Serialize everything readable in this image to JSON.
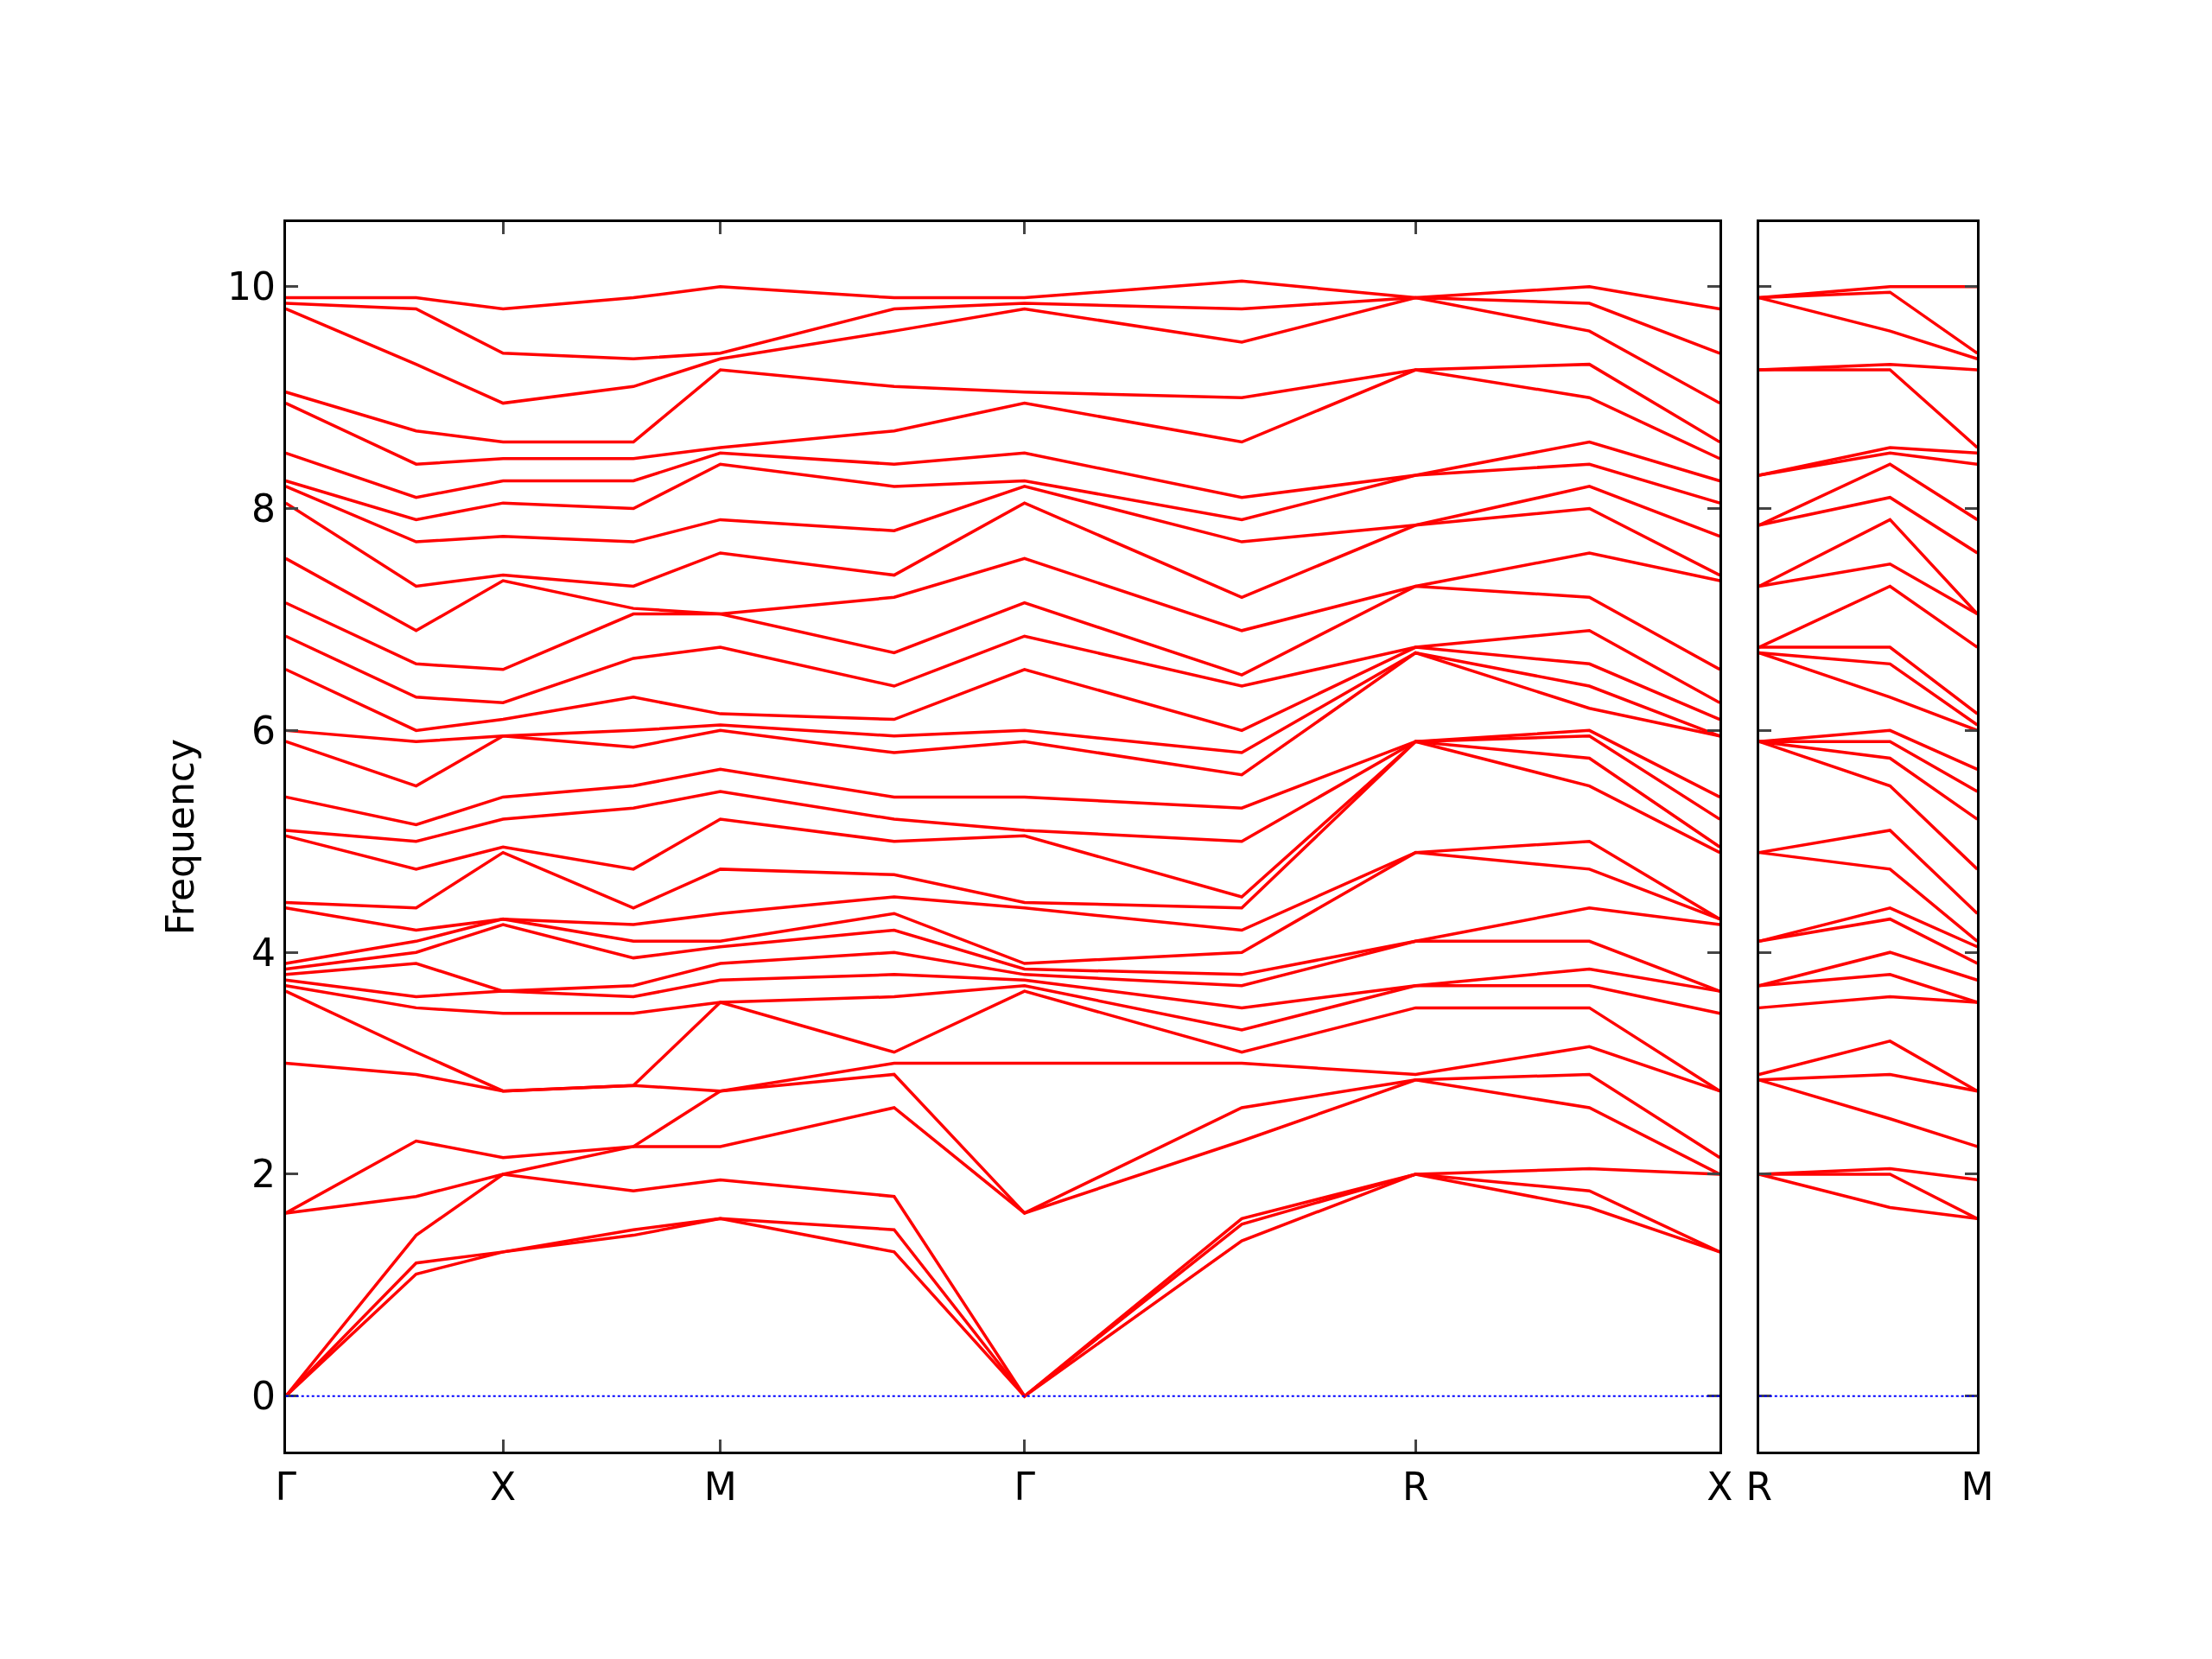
{
  "chart_data": [
    {
      "type": "line",
      "ylabel": "Frequency",
      "categories": [
        "Γ",
        null,
        null,
        null,
        null,
        "X",
        null,
        null,
        null,
        null,
        "M",
        null,
        null,
        null,
        null,
        null,
        null,
        "Γ",
        null,
        null,
        null,
        null,
        null,
        null,
        null,
        null,
        "R",
        null,
        null,
        null,
        null,
        null,
        null,
        "X"
      ],
      "ylim": [
        -0.5,
        10.58
      ],
      "yticks": [
        0,
        2,
        4,
        6,
        8,
        10
      ],
      "marker": "none",
      "line_style": "solid",
      "ref_lines": [
        {
          "axis": "y",
          "value": 0,
          "color": "#0000ff",
          "line_style": "dotted"
        }
      ],
      "series": [
        {
          "color": "#ff0000",
          "values": [
            0,
            null,
            null,
            1.1,
            null,
            1.3,
            null,
            null,
            1.45,
            null,
            1.6,
            null,
            null,
            null,
            1.3,
            null,
            null,
            0,
            null,
            null,
            null,
            null,
            1.4,
            null,
            null,
            null,
            2.0,
            null,
            null,
            null,
            1.7,
            null,
            null,
            1.3
          ]
        },
        {
          "color": "#ff0000",
          "values": [
            0,
            null,
            null,
            1.2,
            null,
            1.3,
            null,
            null,
            1.5,
            null,
            1.6,
            null,
            null,
            null,
            1.5,
            null,
            null,
            0,
            null,
            null,
            null,
            null,
            1.55,
            null,
            null,
            null,
            2.0,
            null,
            null,
            null,
            1.85,
            null,
            null,
            1.3
          ]
        },
        {
          "color": "#ff0000",
          "values": [
            0,
            null,
            null,
            1.45,
            null,
            2.0,
            null,
            null,
            1.85,
            null,
            1.95,
            null,
            null,
            null,
            1.8,
            null,
            null,
            0,
            null,
            null,
            null,
            null,
            1.6,
            null,
            null,
            null,
            2.0,
            null,
            null,
            null,
            2.05,
            null,
            null,
            2.0
          ]
        },
        {
          "color": "#ff0000",
          "values": [
            1.65,
            null,
            null,
            1.8,
            null,
            2.0,
            null,
            null,
            2.25,
            null,
            2.25,
            null,
            null,
            null,
            2.6,
            null,
            null,
            1.65,
            null,
            null,
            null,
            null,
            2.3,
            null,
            null,
            null,
            2.85,
            null,
            null,
            null,
            2.6,
            null,
            null,
            2.0
          ]
        },
        {
          "color": "#ff0000",
          "values": [
            1.65,
            null,
            null,
            2.3,
            null,
            2.15,
            null,
            null,
            2.25,
            null,
            2.75,
            null,
            null,
            null,
            2.9,
            null,
            null,
            1.65,
            null,
            null,
            null,
            null,
            2.6,
            null,
            null,
            null,
            2.85,
            null,
            null,
            null,
            2.9,
            null,
            null,
            2.15
          ]
        },
        {
          "color": "#ff0000",
          "values": [
            3.0,
            null,
            null,
            2.9,
            null,
            2.75,
            null,
            null,
            2.8,
            null,
            2.75,
            null,
            null,
            null,
            3.0,
            null,
            null,
            3.0,
            null,
            null,
            null,
            null,
            3.0,
            null,
            null,
            null,
            2.9,
            null,
            null,
            null,
            3.15,
            null,
            null,
            2.75
          ]
        },
        {
          "color": "#ff0000",
          "values": [
            3.65,
            null,
            null,
            3.1,
            null,
            2.75,
            null,
            null,
            2.8,
            null,
            3.55,
            null,
            null,
            null,
            3.1,
            null,
            null,
            3.65,
            null,
            null,
            null,
            null,
            3.1,
            null,
            null,
            null,
            3.5,
            null,
            null,
            null,
            3.5,
            null,
            null,
            2.75
          ]
        },
        {
          "color": "#ff0000",
          "values": [
            3.7,
            null,
            null,
            3.5,
            null,
            3.45,
            null,
            null,
            3.45,
            null,
            3.55,
            null,
            null,
            null,
            3.6,
            null,
            null,
            3.7,
            null,
            null,
            null,
            null,
            3.3,
            null,
            null,
            null,
            3.7,
            null,
            null,
            null,
            3.7,
            null,
            null,
            3.45
          ]
        },
        {
          "color": "#ff0000",
          "values": [
            3.75,
            null,
            null,
            3.6,
            null,
            3.65,
            null,
            null,
            3.6,
            null,
            3.75,
            null,
            null,
            null,
            3.8,
            null,
            null,
            3.75,
            null,
            null,
            null,
            null,
            3.5,
            null,
            null,
            null,
            3.7,
            null,
            null,
            null,
            3.85,
            null,
            null,
            3.65
          ]
        },
        {
          "color": "#ff0000",
          "values": [
            3.8,
            null,
            null,
            3.9,
            null,
            3.65,
            null,
            null,
            3.7,
            null,
            3.9,
            null,
            null,
            null,
            4.0,
            null,
            null,
            3.8,
            null,
            null,
            null,
            null,
            3.7,
            null,
            null,
            null,
            4.1,
            null,
            null,
            null,
            4.1,
            null,
            null,
            3.65
          ]
        },
        {
          "color": "#ff0000",
          "values": [
            3.85,
            null,
            null,
            4.0,
            null,
            4.25,
            null,
            null,
            3.95,
            null,
            4.05,
            null,
            null,
            null,
            4.2,
            null,
            null,
            3.85,
            null,
            null,
            null,
            null,
            3.8,
            null,
            null,
            null,
            4.1,
            null,
            null,
            null,
            4.4,
            null,
            null,
            4.25
          ]
        },
        {
          "color": "#ff0000",
          "values": [
            3.9,
            null,
            null,
            4.1,
            null,
            4.3,
            null,
            null,
            4.1,
            null,
            4.1,
            null,
            null,
            null,
            4.35,
            null,
            null,
            3.9,
            null,
            null,
            null,
            null,
            4.0,
            null,
            null,
            null,
            4.9,
            null,
            null,
            null,
            4.75,
            null,
            null,
            4.3
          ]
        },
        {
          "color": "#ff0000",
          "values": [
            4.4,
            null,
            null,
            4.2,
            null,
            4.3,
            null,
            null,
            4.25,
            null,
            4.35,
            null,
            null,
            null,
            4.5,
            null,
            null,
            4.4,
            null,
            null,
            null,
            null,
            4.2,
            null,
            null,
            null,
            4.9,
            null,
            null,
            null,
            5.0,
            null,
            null,
            4.3
          ]
        },
        {
          "color": "#ff0000",
          "values": [
            4.45,
            null,
            null,
            4.4,
            null,
            4.9,
            null,
            null,
            4.4,
            null,
            4.75,
            null,
            null,
            null,
            4.7,
            null,
            null,
            4.45,
            null,
            null,
            null,
            null,
            4.4,
            null,
            null,
            null,
            5.9,
            null,
            null,
            null,
            5.5,
            null,
            null,
            4.9
          ]
        },
        {
          "color": "#ff0000",
          "values": [
            5.05,
            null,
            null,
            4.75,
            null,
            4.95,
            null,
            null,
            4.75,
            null,
            5.2,
            null,
            null,
            null,
            5.0,
            null,
            null,
            5.05,
            null,
            null,
            null,
            null,
            4.5,
            null,
            null,
            null,
            5.9,
            null,
            null,
            null,
            5.75,
            null,
            null,
            4.95
          ]
        },
        {
          "color": "#ff0000",
          "values": [
            5.1,
            null,
            null,
            5.0,
            null,
            5.2,
            null,
            null,
            5.3,
            null,
            5.45,
            null,
            null,
            null,
            5.2,
            null,
            null,
            5.1,
            null,
            null,
            null,
            null,
            5.0,
            null,
            null,
            null,
            5.9,
            null,
            null,
            null,
            5.95,
            null,
            null,
            5.2
          ]
        },
        {
          "color": "#ff0000",
          "values": [
            5.4,
            null,
            null,
            5.15,
            null,
            5.4,
            null,
            null,
            5.5,
            null,
            5.65,
            null,
            null,
            null,
            5.4,
            null,
            null,
            5.4,
            null,
            null,
            null,
            null,
            5.3,
            null,
            null,
            null,
            5.9,
            null,
            null,
            null,
            6.0,
            null,
            null,
            5.4
          ]
        },
        {
          "color": "#ff0000",
          "values": [
            5.9,
            null,
            null,
            5.5,
            null,
            5.95,
            null,
            null,
            5.85,
            null,
            6.0,
            null,
            null,
            null,
            5.8,
            null,
            null,
            5.9,
            null,
            null,
            null,
            null,
            5.6,
            null,
            null,
            null,
            6.7,
            null,
            null,
            null,
            6.2,
            null,
            null,
            5.95
          ]
        },
        {
          "color": "#ff0000",
          "values": [
            6.0,
            null,
            null,
            5.9,
            null,
            5.95,
            null,
            null,
            6.0,
            null,
            6.05,
            null,
            null,
            null,
            5.95,
            null,
            null,
            6.0,
            null,
            null,
            null,
            null,
            5.8,
            null,
            null,
            null,
            6.7,
            null,
            null,
            null,
            6.4,
            null,
            null,
            5.95
          ]
        },
        {
          "color": "#ff0000",
          "values": [
            6.55,
            null,
            null,
            6.0,
            null,
            6.1,
            null,
            null,
            6.3,
            null,
            6.15,
            null,
            null,
            null,
            6.1,
            null,
            null,
            6.55,
            null,
            null,
            null,
            null,
            6.0,
            null,
            null,
            null,
            6.75,
            null,
            null,
            null,
            6.6,
            null,
            null,
            6.1
          ]
        },
        {
          "color": "#ff0000",
          "values": [
            6.85,
            null,
            null,
            6.3,
            null,
            6.25,
            null,
            null,
            6.65,
            null,
            6.75,
            null,
            null,
            null,
            6.4,
            null,
            null,
            6.85,
            null,
            null,
            null,
            null,
            6.4,
            null,
            null,
            null,
            6.75,
            null,
            null,
            null,
            6.9,
            null,
            null,
            6.25
          ]
        },
        {
          "color": "#ff0000",
          "values": [
            7.15,
            null,
            null,
            6.6,
            null,
            6.55,
            null,
            null,
            7.05,
            null,
            7.05,
            null,
            null,
            null,
            6.7,
            null,
            null,
            7.15,
            null,
            null,
            null,
            null,
            6.5,
            null,
            null,
            null,
            7.3,
            null,
            null,
            null,
            7.2,
            null,
            null,
            6.55
          ]
        },
        {
          "color": "#ff0000",
          "values": [
            7.55,
            null,
            null,
            6.9,
            null,
            7.35,
            null,
            null,
            7.1,
            null,
            7.05,
            null,
            null,
            null,
            7.2,
            null,
            null,
            7.55,
            null,
            null,
            null,
            null,
            6.9,
            null,
            null,
            null,
            7.3,
            null,
            null,
            null,
            7.6,
            null,
            null,
            7.35
          ]
        },
        {
          "color": "#ff0000",
          "values": [
            8.05,
            null,
            null,
            7.3,
            null,
            7.4,
            null,
            null,
            7.3,
            null,
            7.6,
            null,
            null,
            null,
            7.4,
            null,
            null,
            8.05,
            null,
            null,
            null,
            null,
            7.2,
            null,
            null,
            null,
            7.85,
            null,
            null,
            null,
            8.0,
            null,
            null,
            7.4
          ]
        },
        {
          "color": "#ff0000",
          "values": [
            8.2,
            null,
            null,
            7.7,
            null,
            7.75,
            null,
            null,
            7.7,
            null,
            7.9,
            null,
            null,
            null,
            7.8,
            null,
            null,
            8.2,
            null,
            null,
            null,
            null,
            7.7,
            null,
            null,
            null,
            7.85,
            null,
            null,
            null,
            8.2,
            null,
            null,
            7.75
          ]
        },
        {
          "color": "#ff0000",
          "values": [
            8.25,
            null,
            null,
            7.9,
            null,
            8.05,
            null,
            null,
            8.0,
            null,
            8.4,
            null,
            null,
            null,
            8.2,
            null,
            null,
            8.25,
            null,
            null,
            null,
            null,
            7.9,
            null,
            null,
            null,
            8.3,
            null,
            null,
            null,
            8.4,
            null,
            null,
            8.05
          ]
        },
        {
          "color": "#ff0000",
          "values": [
            8.5,
            null,
            null,
            8.1,
            null,
            8.25,
            null,
            null,
            8.25,
            null,
            8.5,
            null,
            null,
            null,
            8.4,
            null,
            null,
            8.5,
            null,
            null,
            null,
            null,
            8.1,
            null,
            null,
            null,
            8.3,
            null,
            null,
            null,
            8.6,
            null,
            null,
            8.25
          ]
        },
        {
          "color": "#ff0000",
          "values": [
            8.95,
            null,
            null,
            8.4,
            null,
            8.45,
            null,
            null,
            8.45,
            null,
            8.55,
            null,
            null,
            null,
            8.7,
            null,
            null,
            8.95,
            null,
            null,
            null,
            null,
            8.6,
            null,
            null,
            null,
            9.25,
            null,
            null,
            null,
            9.0,
            null,
            null,
            8.45
          ]
        },
        {
          "color": "#ff0000",
          "values": [
            9.05,
            null,
            null,
            8.7,
            null,
            8.6,
            null,
            null,
            8.6,
            null,
            9.25,
            null,
            null,
            null,
            9.1,
            null,
            null,
            9.05,
            null,
            null,
            null,
            null,
            9.0,
            null,
            null,
            null,
            9.25,
            null,
            null,
            null,
            9.3,
            null,
            null,
            8.6
          ]
        },
        {
          "color": "#ff0000",
          "values": [
            9.8,
            null,
            null,
            9.3,
            null,
            8.95,
            null,
            null,
            9.1,
            null,
            9.35,
            null,
            null,
            null,
            9.6,
            null,
            null,
            9.8,
            null,
            null,
            null,
            null,
            9.5,
            null,
            null,
            null,
            9.9,
            null,
            null,
            null,
            9.6,
            null,
            null,
            8.95
          ]
        },
        {
          "color": "#ff0000",
          "values": [
            9.85,
            null,
            null,
            9.8,
            null,
            9.4,
            null,
            null,
            9.35,
            null,
            9.4,
            null,
            null,
            null,
            9.8,
            null,
            null,
            9.85,
            null,
            null,
            null,
            null,
            9.8,
            null,
            null,
            null,
            9.9,
            null,
            null,
            null,
            9.85,
            null,
            null,
            9.4
          ]
        },
        {
          "color": "#ff0000",
          "values": [
            9.9,
            null,
            null,
            9.9,
            null,
            9.8,
            null,
            null,
            9.9,
            null,
            10.0,
            null,
            null,
            null,
            9.9,
            null,
            null,
            9.9,
            null,
            null,
            null,
            null,
            10.05,
            null,
            null,
            null,
            9.9,
            null,
            null,
            null,
            10.0,
            null,
            null,
            9.8
          ]
        }
      ]
    },
    {
      "type": "line",
      "categories": [
        "R",
        null,
        null,
        null,
        null,
        "M"
      ],
      "ylim": [
        -0.5,
        10.58
      ],
      "yticks": [
        0,
        2,
        4,
        6,
        8,
        10
      ],
      "tick_labels": "x",
      "marker": "none",
      "line_style": "solid",
      "ref_lines": [
        {
          "axis": "y",
          "value": 0,
          "color": "#0000ff",
          "line_style": "dotted"
        }
      ],
      "series": [
        {
          "color": "#ff0000",
          "values": [
            2.0,
            null,
            null,
            1.7,
            null,
            1.6
          ]
        },
        {
          "color": "#ff0000",
          "values": [
            2.0,
            null,
            null,
            2.0,
            null,
            1.6
          ]
        },
        {
          "color": "#ff0000",
          "values": [
            2.0,
            null,
            null,
            2.05,
            null,
            1.95
          ]
        },
        {
          "color": "#ff0000",
          "values": [
            2.85,
            null,
            null,
            2.5,
            null,
            2.25
          ]
        },
        {
          "color": "#ff0000",
          "values": [
            2.85,
            null,
            null,
            2.9,
            null,
            2.75
          ]
        },
        {
          "color": "#ff0000",
          "values": [
            2.9,
            null,
            null,
            3.2,
            null,
            2.75
          ]
        },
        {
          "color": "#ff0000",
          "values": [
            3.5,
            null,
            null,
            3.6,
            null,
            3.55
          ]
        },
        {
          "color": "#ff0000",
          "values": [
            3.7,
            null,
            null,
            3.8,
            null,
            3.55
          ]
        },
        {
          "color": "#ff0000",
          "values": [
            3.7,
            null,
            null,
            4.0,
            null,
            3.75
          ]
        },
        {
          "color": "#ff0000",
          "values": [
            4.1,
            null,
            null,
            4.3,
            null,
            3.9
          ]
        },
        {
          "color": "#ff0000",
          "values": [
            4.1,
            null,
            null,
            4.4,
            null,
            4.05
          ]
        },
        {
          "color": "#ff0000",
          "values": [
            4.9,
            null,
            null,
            4.75,
            null,
            4.1
          ]
        },
        {
          "color": "#ff0000",
          "values": [
            4.9,
            null,
            null,
            5.1,
            null,
            4.35
          ]
        },
        {
          "color": "#ff0000",
          "values": [
            5.9,
            null,
            null,
            5.5,
            null,
            4.75
          ]
        },
        {
          "color": "#ff0000",
          "values": [
            5.9,
            null,
            null,
            5.75,
            null,
            5.2
          ]
        },
        {
          "color": "#ff0000",
          "values": [
            5.9,
            null,
            null,
            5.9,
            null,
            5.45
          ]
        },
        {
          "color": "#ff0000",
          "values": [
            5.9,
            null,
            null,
            6.0,
            null,
            5.65
          ]
        },
        {
          "color": "#ff0000",
          "values": [
            6.7,
            null,
            null,
            6.3,
            null,
            6.0
          ]
        },
        {
          "color": "#ff0000",
          "values": [
            6.7,
            null,
            null,
            6.6,
            null,
            6.05
          ]
        },
        {
          "color": "#ff0000",
          "values": [
            6.75,
            null,
            null,
            6.75,
            null,
            6.15
          ]
        },
        {
          "color": "#ff0000",
          "values": [
            6.75,
            null,
            null,
            7.3,
            null,
            6.75
          ]
        },
        {
          "color": "#ff0000",
          "values": [
            7.3,
            null,
            null,
            7.5,
            null,
            7.05
          ]
        },
        {
          "color": "#ff0000",
          "values": [
            7.3,
            null,
            null,
            7.9,
            null,
            7.05
          ]
        },
        {
          "color": "#ff0000",
          "values": [
            7.85,
            null,
            null,
            8.1,
            null,
            7.6
          ]
        },
        {
          "color": "#ff0000",
          "values": [
            7.85,
            null,
            null,
            8.4,
            null,
            7.9
          ]
        },
        {
          "color": "#ff0000",
          "values": [
            8.3,
            null,
            null,
            8.5,
            null,
            8.4
          ]
        },
        {
          "color": "#ff0000",
          "values": [
            8.3,
            null,
            null,
            8.55,
            null,
            8.5
          ]
        },
        {
          "color": "#ff0000",
          "values": [
            9.25,
            null,
            null,
            9.25,
            null,
            8.55
          ]
        },
        {
          "color": "#ff0000",
          "values": [
            9.25,
            null,
            null,
            9.3,
            null,
            9.25
          ]
        },
        {
          "color": "#ff0000",
          "values": [
            9.9,
            null,
            null,
            9.6,
            null,
            9.35
          ]
        },
        {
          "color": "#ff0000",
          "values": [
            9.9,
            null,
            null,
            9.95,
            null,
            9.4
          ]
        },
        {
          "color": "#ff0000",
          "values": [
            9.9,
            null,
            null,
            10.0,
            null,
            10.0
          ]
        }
      ]
    }
  ]
}
